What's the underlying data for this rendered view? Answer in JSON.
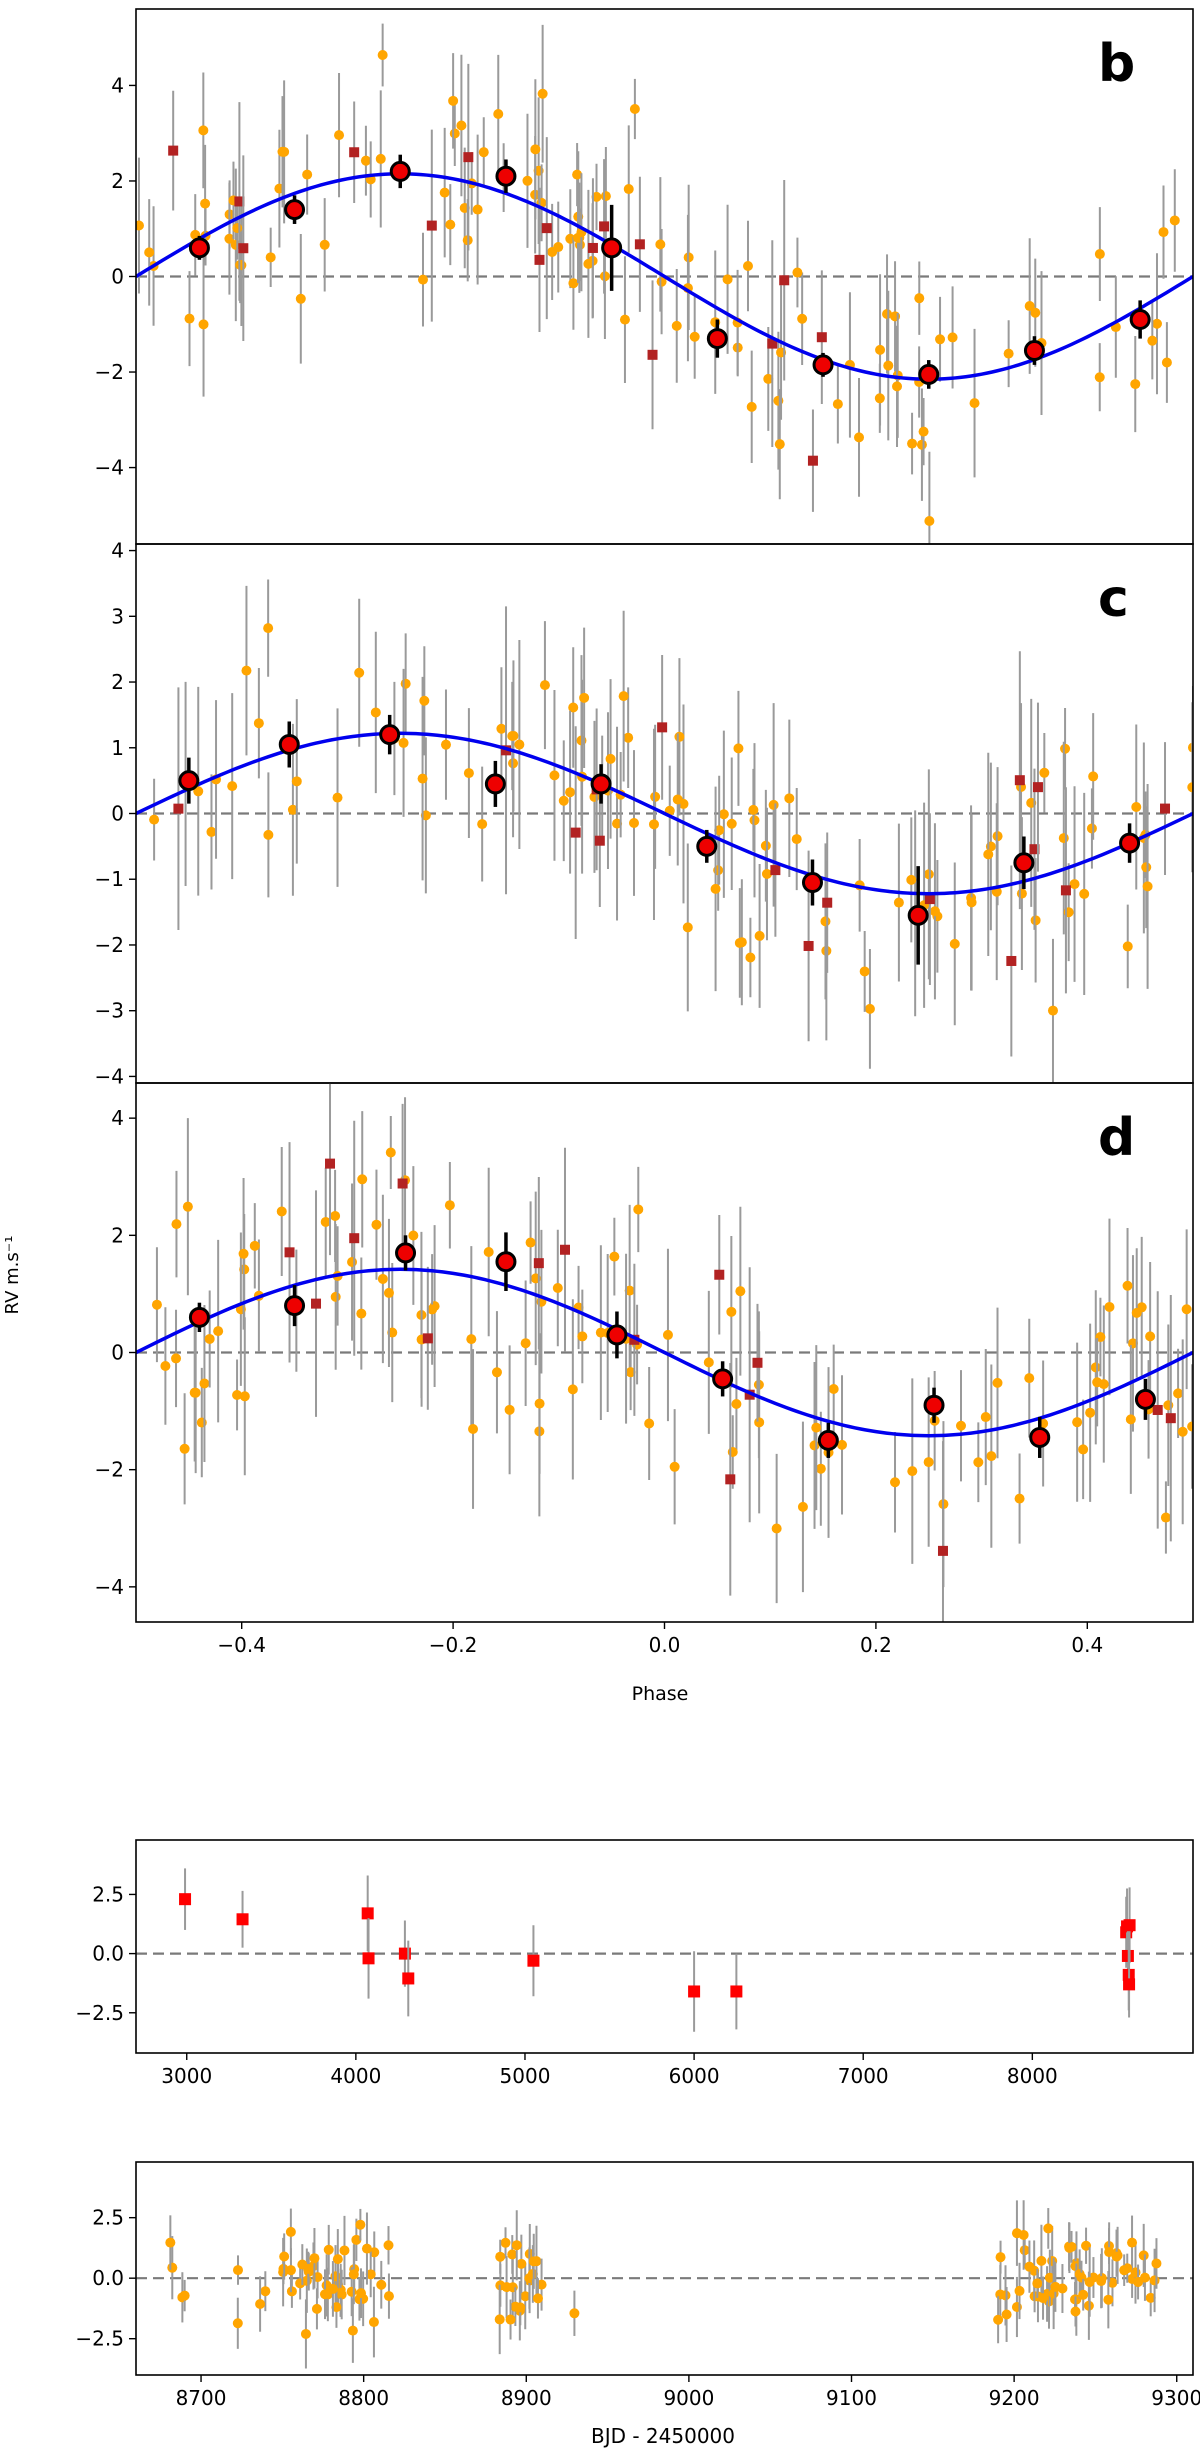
{
  "colors": {
    "model": "#0000ee",
    "harps_points": "#ffa500",
    "other_points": "#b22222",
    "binned": "#ee0000",
    "errbar": "#9a9a9a",
    "zero_line": "#7a7a7a",
    "red_square": "#ff0000"
  },
  "figure": {
    "ylabel": "RV m.s⁻¹",
    "phase_xlabel": "Phase",
    "time_xlabel": "BJD - 2450000"
  },
  "chart_data": [
    {
      "type": "scatter",
      "name": "phase-b",
      "label": "b",
      "xlim": [
        -0.5,
        0.5
      ],
      "ylim": [
        -5.6,
        5.6
      ],
      "yticks": [
        -4,
        -2,
        0,
        2,
        4
      ],
      "xticks": [],
      "amplitude": 2.15,
      "phase_offset": -0.5,
      "binned": {
        "x": [
          -0.44,
          -0.35,
          -0.25,
          -0.15,
          -0.05,
          0.05,
          0.15,
          0.25,
          0.35,
          0.45
        ],
        "y": [
          0.6,
          1.4,
          2.2,
          2.1,
          0.6,
          -1.3,
          -1.85,
          -2.05,
          -1.55,
          -0.9
        ],
        "err": [
          0.25,
          0.3,
          0.35,
          0.35,
          0.9,
          0.4,
          0.25,
          0.3,
          0.3,
          0.4
        ]
      },
      "points_seed": 11,
      "points_n": 115,
      "squares_seed": 21,
      "squares_n": 16,
      "scatter_sd": 1.0
    },
    {
      "type": "scatter",
      "name": "phase-c",
      "label": "c",
      "xlim": [
        -0.5,
        0.5
      ],
      "ylim": [
        -4.1,
        4.1
      ],
      "yticks": [
        -4,
        -3,
        -2,
        -1,
        0,
        1,
        2,
        3,
        4
      ],
      "xticks": [],
      "amplitude": 1.22,
      "phase_offset": -0.5,
      "binned": {
        "x": [
          -0.45,
          -0.355,
          -0.26,
          -0.16,
          -0.06,
          0.04,
          0.14,
          0.24,
          0.34,
          0.44
        ],
        "y": [
          0.5,
          1.05,
          1.2,
          0.45,
          0.45,
          -0.5,
          -1.05,
          -1.55,
          -0.75,
          -0.45
        ],
        "err": [
          0.35,
          0.35,
          0.3,
          0.35,
          0.3,
          0.25,
          0.35,
          0.75,
          0.4,
          0.3
        ]
      },
      "points_seed": 33,
      "points_n": 110,
      "squares_seed": 44,
      "squares_n": 16,
      "scatter_sd": 0.85
    },
    {
      "type": "scatter",
      "name": "phase-d",
      "label": "d",
      "xlim": [
        -0.5,
        0.5
      ],
      "ylim": [
        -4.6,
        4.6
      ],
      "yticks": [
        -4,
        -2,
        0,
        2,
        4
      ],
      "xticks": [
        -0.4,
        -0.2,
        0.0,
        0.2,
        0.4
      ],
      "amplitude": 1.42,
      "phase_offset": -0.5,
      "binned": {
        "x": [
          -0.44,
          -0.35,
          -0.245,
          -0.15,
          -0.045,
          0.055,
          0.155,
          0.255,
          0.355,
          0.455
        ],
        "y": [
          0.6,
          0.8,
          1.7,
          1.55,
          0.3,
          -0.45,
          -1.5,
          -0.9,
          -1.45,
          -0.8
        ],
        "err": [
          0.25,
          0.35,
          0.3,
          0.5,
          0.4,
          0.3,
          0.3,
          0.3,
          0.35,
          0.35
        ]
      },
      "points_seed": 55,
      "points_n": 115,
      "squares_seed": 66,
      "squares_n": 16,
      "scatter_sd": 1.0
    },
    {
      "type": "scatter",
      "name": "residuals-early",
      "xlim": [
        2700,
        8950
      ],
      "ylim": [
        -4.2,
        4.8
      ],
      "yticks": [
        -2.5,
        0.0,
        2.5
      ],
      "ytick_labels": [
        "−2.5",
        "0.0",
        "2.5"
      ],
      "xticks": [
        3000,
        4000,
        5000,
        6000,
        7000,
        8000
      ],
      "x": [
        2990,
        3330,
        4070,
        4075,
        4290,
        4310,
        5050,
        6000,
        6250,
        8555,
        8560,
        8565,
        8570,
        8572,
        8575
      ],
      "y": [
        2.3,
        1.45,
        1.7,
        -0.2,
        0.0,
        -1.05,
        -0.3,
        -1.6,
        -1.6,
        0.9,
        1.15,
        -0.1,
        -0.9,
        -1.3,
        1.2
      ],
      "err": [
        1.3,
        1.2,
        1.6,
        1.7,
        1.4,
        1.6,
        1.5,
        1.7,
        1.6,
        1.5,
        1.6,
        1.4,
        1.5,
        1.4,
        1.6
      ]
    },
    {
      "type": "scatter",
      "name": "residuals-recent",
      "xlim": [
        8660,
        9310
      ],
      "ylim": [
        -4.0,
        4.8
      ],
      "yticks": [
        -2.5,
        0.0,
        2.5
      ],
      "ytick_labels": [
        "−2.5",
        "0.0",
        "2.5"
      ],
      "xticks": [
        8700,
        8800,
        8900,
        9000,
        9100,
        9200,
        9300
      ],
      "clusters": [
        {
          "from": 8680,
          "to": 8700,
          "n": 4
        },
        {
          "from": 8720,
          "to": 8740,
          "n": 4
        },
        {
          "from": 8750,
          "to": 8820,
          "n": 45
        },
        {
          "from": 8880,
          "to": 8910,
          "n": 22
        },
        {
          "from": 8925,
          "to": 8930,
          "n": 1
        },
        {
          "from": 9190,
          "to": 9290,
          "n": 60
        }
      ],
      "points_seed": 77,
      "scatter_sd": 1.05
    }
  ]
}
